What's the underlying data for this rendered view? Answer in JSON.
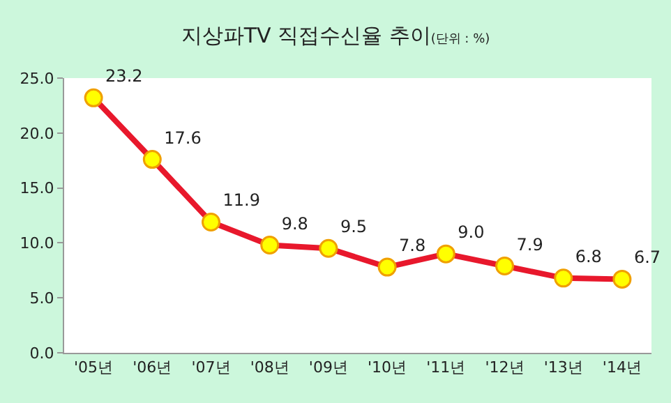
{
  "chart_data": {
    "type": "line",
    "title": "지상파TV 직접수신율 추이",
    "subtitle": "(단위 : %)",
    "categories": [
      "'05년",
      "'06년",
      "'07년",
      "'08년",
      "'09년",
      "'10년",
      "'11년",
      "'12년",
      "'13년",
      "'14년"
    ],
    "series": [
      {
        "color": "#e8182c",
        "values": [
          23.2,
          17.6,
          11.9,
          9.8,
          9.5,
          7.8,
          9.0,
          7.9,
          6.8,
          6.7
        ],
        "value_labels": [
          "23.2",
          "17.6",
          "11.9",
          "9.8",
          "9.5",
          "7.8",
          "9.0",
          "7.9",
          "6.8",
          "6.7"
        ]
      }
    ],
    "ylim": [
      0,
      25
    ],
    "yticks": [
      {
        "value": 0,
        "label": "0.0"
      },
      {
        "value": 5,
        "label": "5.0"
      },
      {
        "value": 10,
        "label": "10.0"
      },
      {
        "value": 15,
        "label": "15.0"
      },
      {
        "value": 20,
        "label": "20.0"
      },
      {
        "value": 25,
        "label": "25.0"
      }
    ],
    "marker": "circle",
    "line_style": "solid"
  }
}
